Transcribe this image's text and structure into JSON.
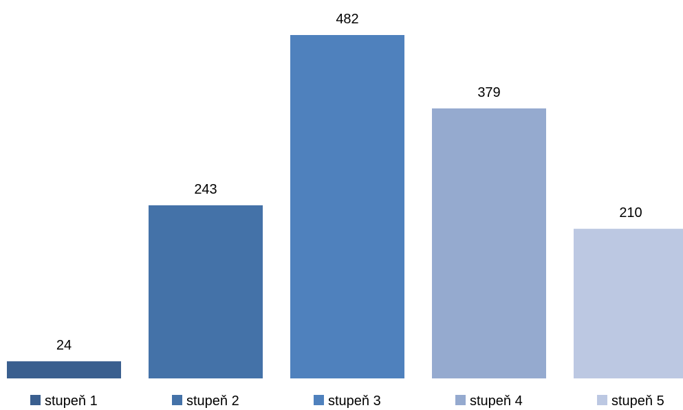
{
  "chart_data": {
    "type": "bar",
    "categories": [
      "stupeň 1",
      "stupeň 2",
      "stupeň 3",
      "stupeň 4",
      "stupeň 5"
    ],
    "values": [
      24,
      243,
      482,
      379,
      210
    ],
    "colors": [
      "#3A5F8F",
      "#4472A8",
      "#4F81BD",
      "#95AACF",
      "#BCC8E2"
    ],
    "data_labels": [
      "24",
      "243",
      "482",
      "379",
      "210"
    ],
    "title": "",
    "xlabel": "",
    "ylabel": "",
    "ylim": [
      0,
      482
    ],
    "grid": false,
    "legend_placement": "bottom",
    "axes_visible": false
  }
}
